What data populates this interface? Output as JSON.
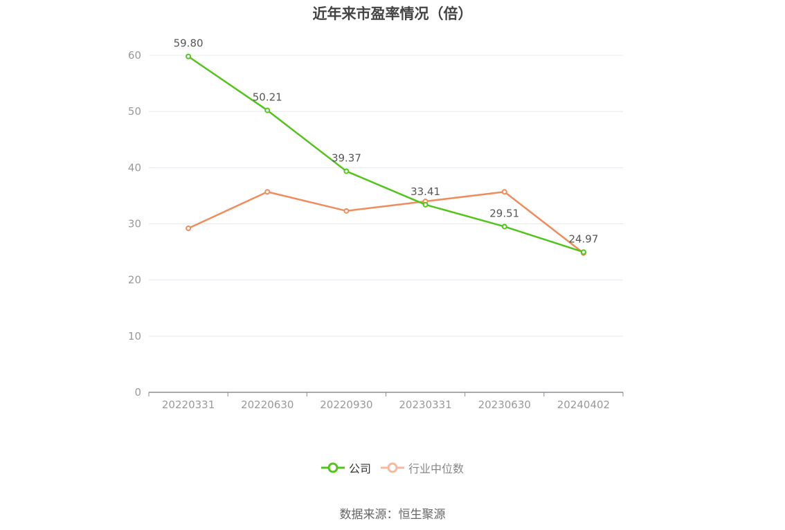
{
  "chart_data": {
    "type": "line",
    "title": "近年来市盈率情况（倍）",
    "categories": [
      "20220331",
      "20220630",
      "20220930",
      "20230331",
      "20230630",
      "20240402"
    ],
    "ylim": [
      0,
      60
    ],
    "yticks": [
      0,
      10,
      20,
      30,
      40,
      50,
      60
    ],
    "grid": true,
    "legend_position": "bottom",
    "series": [
      {
        "name": "公司",
        "color": "#52c41a",
        "values": [
          59.8,
          50.21,
          39.37,
          33.41,
          29.51,
          24.97
        ],
        "labels": [
          "59.80",
          "50.21",
          "39.37",
          "33.41",
          "29.51",
          "24.97"
        ]
      },
      {
        "name": "行业中位数",
        "color": "#f08c5c",
        "values": [
          29.2,
          35.7,
          32.3,
          34.0,
          35.7,
          24.8
        ]
      }
    ]
  },
  "legend": {
    "items": [
      {
        "label": "公司",
        "color": "#52c41a",
        "text_color": "#333333"
      },
      {
        "label": "行业中位数",
        "color": "#f5b9a0",
        "text_color": "#888888"
      }
    ]
  },
  "source": "数据来源：恒生聚源"
}
